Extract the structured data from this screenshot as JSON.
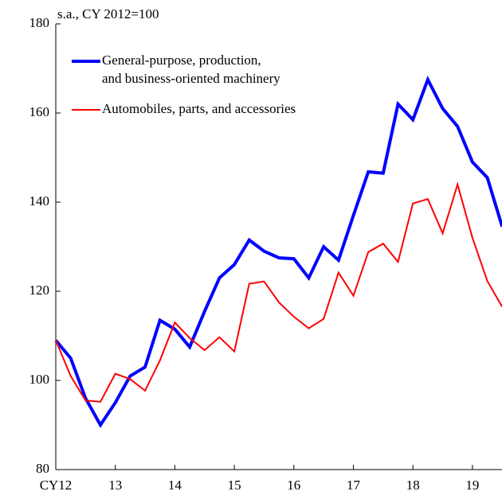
{
  "chart_data": {
    "type": "line",
    "subtitle": "s.a., CY 2012=100",
    "categories": [
      "CY12",
      null,
      null,
      null,
      "13",
      null,
      null,
      null,
      "14",
      null,
      null,
      null,
      "15",
      null,
      null,
      null,
      "16",
      null,
      null,
      null,
      "17",
      null,
      null,
      null,
      "18",
      null,
      null,
      null,
      "19",
      null,
      null
    ],
    "series": [
      {
        "name": [
          "General-purpose, production,",
          "and business-oriented machinery"
        ],
        "color": "#0000ff",
        "values": [
          109,
          105,
          96,
          90,
          95,
          101,
          103,
          113.5,
          111.5,
          107.5,
          115.5,
          123,
          126,
          131.5,
          129,
          127.5,
          127.3,
          123,
          130,
          127,
          137,
          146.8,
          146.5,
          162,
          158.5,
          167.5,
          161,
          157,
          149,
          145.5,
          134.5
        ]
      },
      {
        "name": [
          "Automobiles, parts, and accessories"
        ],
        "color": "#ff0000",
        "values": [
          109,
          101,
          95.5,
          95.2,
          101.5,
          100.3,
          97.7,
          104.5,
          113,
          109.5,
          106.8,
          109.7,
          106.5,
          121.7,
          122.2,
          117.5,
          114.3,
          111.7,
          113.8,
          124.2,
          119,
          128.8,
          130.7,
          126.6,
          139.7,
          140.7,
          133,
          144,
          132,
          122.3,
          116.5
        ]
      }
    ],
    "ylim": [
      80,
      180
    ],
    "yticks": [
      80,
      100,
      120,
      140,
      160,
      180
    ],
    "grid": false
  }
}
